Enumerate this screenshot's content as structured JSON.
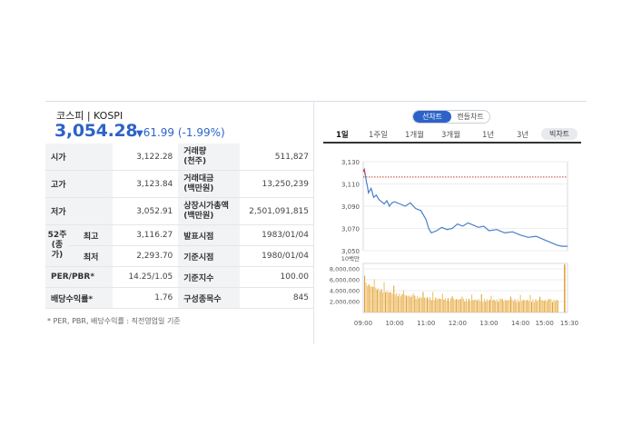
{
  "header": {
    "index_name": "코스피 | KOSPI",
    "price": "3,054.28",
    "change": "61.99 (-1.99%)",
    "change_arrow": "▼",
    "color_down": "#2d63c8"
  },
  "stats": {
    "open_label": "시가",
    "open": "3,122.28",
    "volume_label_1": "거래량",
    "volume_label_2": "(천주)",
    "volume": "511,827",
    "high_label": "고가",
    "high": "3,123.84",
    "amount_label_1": "거래대금",
    "amount_label_2": "(백만원)",
    "amount": "13,250,239",
    "low_label": "저가",
    "low": "3,052.91",
    "mcap_label_1": "상장시가총액",
    "mcap_label_2": "(백만원)",
    "mcap": "2,501,091,815",
    "w52_label_1": "52주",
    "w52_label_2": "(종가)",
    "w52_high_label": "최고",
    "w52_high": "3,116.27",
    "w52_low_label": "최저",
    "w52_low": "2,293.70",
    "announce_label": "발표시점",
    "announce": "1983/01/04",
    "base_time_label": "기준시점",
    "base_time": "1980/01/04",
    "per_label": "PER/PBR*",
    "per": "14.25/1.05",
    "base_index_label": "기준지수",
    "base_index": "100.00",
    "div_label": "배당수익률*",
    "div": "1.76",
    "constituents_label": "구성종목수",
    "constituents": "845"
  },
  "footnote": "* PER, PBR, 배당수익률 : 직전영업일 기준",
  "chart_toggle": {
    "line": "선차트",
    "candle": "캔들차트"
  },
  "period_tabs": [
    "1일",
    "1주일",
    "1개월",
    "3개월",
    "1년",
    "3년"
  ],
  "big_chart": "빅차트",
  "chart_data": {
    "type": "line",
    "y_ticks": [
      "3,130",
      "3,110",
      "3,090",
      "3,070",
      "3,050"
    ],
    "y_range": [
      3050,
      3130
    ],
    "previous_close": 3116.27,
    "x_ticks": [
      "09:00",
      "10:00",
      "11:00",
      "12:00",
      "13:00",
      "14:00",
      "15:00",
      "15:30"
    ],
    "series": [
      {
        "x": [
          "09:00",
          "09:02",
          "09:04",
          "09:06",
          "09:08",
          "09:10",
          "09:15",
          "09:20",
          "09:25",
          "09:30",
          "09:35",
          "09:40",
          "09:45",
          "09:50",
          "09:55",
          "10:00",
          "10:10",
          "10:20",
          "10:30",
          "10:40",
          "10:50",
          "11:00",
          "11:05",
          "11:10",
          "11:20",
          "11:30",
          "11:40",
          "11:50",
          "12:00",
          "12:10",
          "12:20",
          "12:30",
          "12:40",
          "12:50",
          "13:00",
          "13:15",
          "13:30",
          "13:45",
          "14:00",
          "14:15",
          "14:30",
          "14:45",
          "15:00",
          "15:10",
          "15:20",
          "15:30"
        ],
        "values": [
          3121,
          3123,
          3118,
          3112,
          3108,
          3102,
          3106,
          3098,
          3100,
          3096,
          3094,
          3092,
          3095,
          3090,
          3093,
          3094,
          3092,
          3090,
          3093,
          3088,
          3086,
          3078,
          3070,
          3066,
          3068,
          3071,
          3069,
          3070,
          3074,
          3072,
          3075,
          3073,
          3071,
          3072,
          3068,
          3069,
          3066,
          3067,
          3064,
          3062,
          3063,
          3060,
          3057,
          3055,
          3054,
          3054
        ]
      }
    ],
    "volume": {
      "unit_label": "10백만",
      "y_ticks": [
        "8,000,000",
        "6,000,000",
        "4,000,000",
        "2,000,000"
      ],
      "y_range": [
        0,
        9000000
      ]
    }
  }
}
